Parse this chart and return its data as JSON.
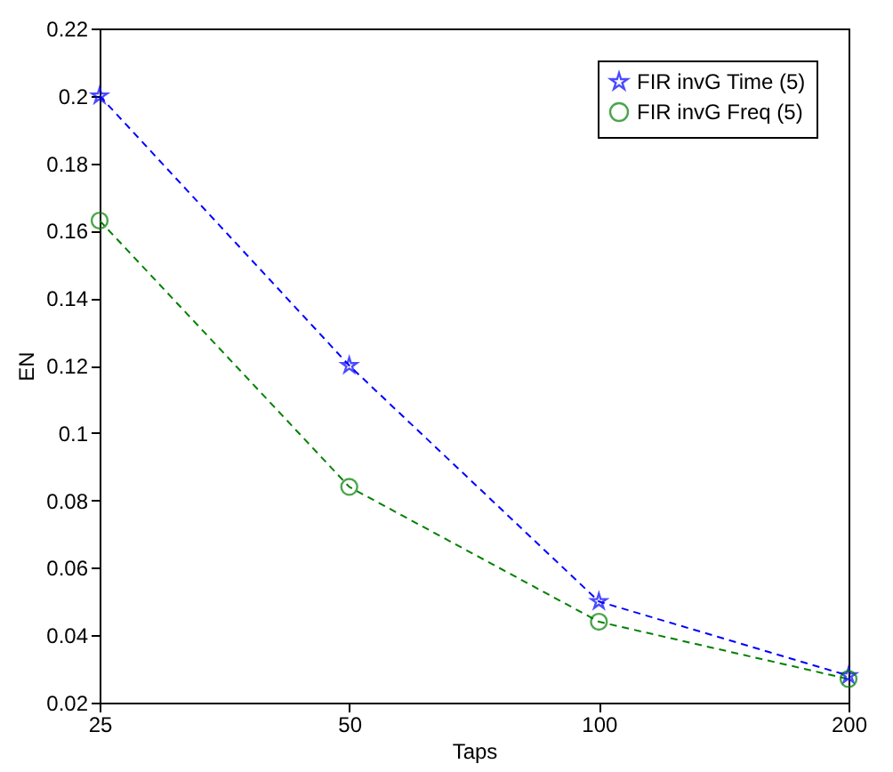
{
  "chart_data": {
    "type": "line",
    "xlabel": "Taps",
    "ylabel": "EN",
    "x": [
      25,
      50,
      100,
      200
    ],
    "log": "x",
    "xlim": [
      25,
      200
    ],
    "xticks": [
      25,
      50,
      100,
      200
    ],
    "ylim": [
      0.02,
      0.22
    ],
    "yticks": [
      0.02,
      0.04,
      0.06,
      0.08,
      {
        "value": 0.1,
        "label": "0.1"
      },
      0.12,
      0.14,
      0.16,
      0.18,
      {
        "value": 0.2,
        "label": "0.2"
      },
      0.22
    ],
    "grid": false,
    "legend": "top right",
    "line_style": "dashed",
    "series": [
      {
        "name": "FIR invG Time (5)",
        "color": "#0000ff",
        "marker": "star",
        "values": [
          0.2,
          0.12,
          0.05,
          0.028
        ]
      },
      {
        "name": "FIR invG Freq (5)",
        "color": "#008000",
        "marker": "circle",
        "values": [
          0.163,
          0.084,
          0.044,
          0.027
        ]
      }
    ]
  }
}
